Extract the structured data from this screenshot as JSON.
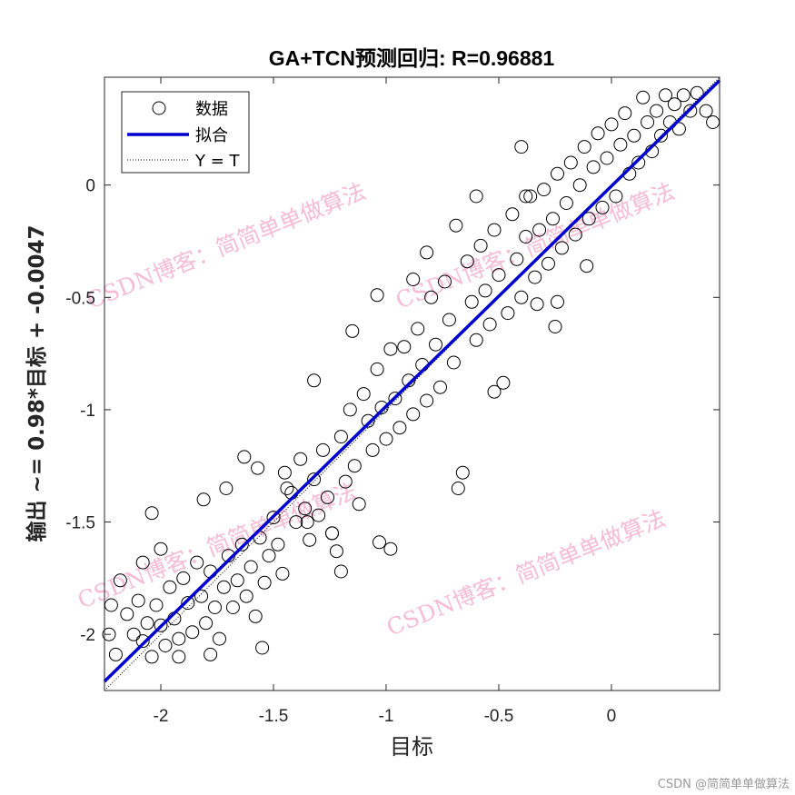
{
  "chart_data": {
    "type": "scatter",
    "title": "GA+TCN预测回归: R=0.96881",
    "xlabel": "目标",
    "ylabel": "输出 ~= 0.98*目标 + -0.0047",
    "xlim": [
      -2.25,
      0.48
    ],
    "ylim": [
      -2.25,
      0.48
    ],
    "xticks": [
      -2,
      -1.5,
      -1,
      -0.5,
      0
    ],
    "yticks": [
      -2,
      -1.5,
      -1,
      -0.5,
      0
    ],
    "tick_labels": [
      "-2",
      "-1.5",
      "-1",
      "-0.5",
      "0"
    ],
    "fit": {
      "slope": 0.98,
      "intercept": -0.0047
    },
    "marker_color": "#000000",
    "fit_color": "#0000cd",
    "legend": {
      "position": "top-left",
      "entries": [
        "数据",
        "拟合",
        "Y = T"
      ]
    },
    "series": [
      {
        "name": "数据",
        "points": [
          [
            -2.23,
            -2.0
          ],
          [
            -2.22,
            -1.87
          ],
          [
            -2.2,
            -2.09
          ],
          [
            -2.18,
            -1.76
          ],
          [
            -2.15,
            -1.91
          ],
          [
            -2.12,
            -2.0
          ],
          [
            -2.1,
            -1.85
          ],
          [
            -2.08,
            -2.03
          ],
          [
            -2.06,
            -1.95
          ],
          [
            -2.04,
            -2.1
          ],
          [
            -2.02,
            -1.87
          ],
          [
            -2.0,
            -1.96
          ],
          [
            -2.04,
            -1.46
          ],
          [
            -2.0,
            -1.62
          ],
          [
            -1.98,
            -2.05
          ],
          [
            -1.96,
            -1.79
          ],
          [
            -1.94,
            -1.93
          ],
          [
            -1.92,
            -2.02
          ],
          [
            -1.9,
            -1.75
          ],
          [
            -1.88,
            -1.86
          ],
          [
            -1.86,
            -1.99
          ],
          [
            -1.84,
            -1.68
          ],
          [
            -1.82,
            -1.83
          ],
          [
            -1.8,
            -1.95
          ],
          [
            -1.78,
            -1.72
          ],
          [
            -1.76,
            -1.88
          ],
          [
            -1.74,
            -2.02
          ],
          [
            -1.72,
            -1.79
          ],
          [
            -1.7,
            -1.65
          ],
          [
            -1.68,
            -1.88
          ],
          [
            -1.66,
            -1.76
          ],
          [
            -1.64,
            -1.6
          ],
          [
            -1.62,
            -1.83
          ],
          [
            -1.6,
            -1.7
          ],
          [
            -1.58,
            -1.92
          ],
          [
            -1.56,
            -1.57
          ],
          [
            -1.55,
            -2.06
          ],
          [
            -1.54,
            -1.77
          ],
          [
            -1.52,
            -1.65
          ],
          [
            -1.5,
            -1.48
          ],
          [
            -1.48,
            -1.6
          ],
          [
            -1.46,
            -1.73
          ],
          [
            -1.45,
            -1.28
          ],
          [
            -1.42,
            -1.37
          ],
          [
            -1.4,
            -1.5
          ],
          [
            -1.38,
            -1.22
          ],
          [
            -1.36,
            -1.44
          ],
          [
            -1.34,
            -1.58
          ],
          [
            -1.32,
            -1.31
          ],
          [
            -1.3,
            -1.47
          ],
          [
            -1.28,
            -1.18
          ],
          [
            -1.26,
            -1.39
          ],
          [
            -1.24,
            -1.55
          ],
          [
            -1.22,
            -1.63
          ],
          [
            -1.2,
            -1.12
          ],
          [
            -1.18,
            -1.32
          ],
          [
            -1.16,
            -1.0
          ],
          [
            -1.14,
            -1.25
          ],
          [
            -1.12,
            -1.42
          ],
          [
            -1.1,
            -0.93
          ],
          [
            -1.08,
            -1.05
          ],
          [
            -1.06,
            -1.18
          ],
          [
            -1.04,
            -0.82
          ],
          [
            -1.02,
            -0.99
          ],
          [
            -1.0,
            -1.13
          ],
          [
            -0.98,
            -0.73
          ],
          [
            -1.03,
            -1.59
          ],
          [
            -0.98,
            -1.62
          ],
          [
            -1.2,
            -1.72
          ],
          [
            -0.96,
            -0.95
          ],
          [
            -0.94,
            -1.08
          ],
          [
            -0.92,
            -0.72
          ],
          [
            -0.9,
            -0.87
          ],
          [
            -0.88,
            -1.02
          ],
          [
            -0.86,
            -0.64
          ],
          [
            -0.84,
            -0.8
          ],
          [
            -0.82,
            -0.96
          ],
          [
            -0.8,
            -0.5
          ],
          [
            -0.78,
            -0.71
          ],
          [
            -0.76,
            -0.9
          ],
          [
            -0.74,
            -0.43
          ],
          [
            -0.72,
            -0.6
          ],
          [
            -0.7,
            -0.79
          ],
          [
            -0.68,
            -1.35
          ],
          [
            -0.66,
            -1.28
          ],
          [
            -0.64,
            -0.34
          ],
          [
            -0.62,
            -0.52
          ],
          [
            -0.6,
            -0.69
          ],
          [
            -0.58,
            -0.27
          ],
          [
            -0.56,
            -0.47
          ],
          [
            -0.54,
            -0.62
          ],
          [
            -0.52,
            -0.2
          ],
          [
            -0.5,
            -0.4
          ],
          [
            -0.48,
            -0.88
          ],
          [
            -0.46,
            -0.57
          ],
          [
            -0.44,
            -0.13
          ],
          [
            -0.42,
            -0.33
          ],
          [
            -0.4,
            -0.5
          ],
          [
            -0.38,
            -0.23
          ],
          [
            -0.36,
            -0.05
          ],
          [
            -0.34,
            -0.41
          ],
          [
            -0.32,
            -0.2
          ],
          [
            -0.3,
            -0.02
          ],
          [
            -0.28,
            -0.35
          ],
          [
            -0.26,
            -0.15
          ],
          [
            -0.24,
            0.05
          ],
          [
            -0.22,
            -0.28
          ],
          [
            -0.2,
            -0.08
          ],
          [
            -0.18,
            0.1
          ],
          [
            -0.16,
            -0.22
          ],
          [
            -0.14,
            0.0
          ],
          [
            -0.12,
            0.17
          ],
          [
            -0.1,
            -0.15
          ],
          [
            -0.08,
            0.08
          ],
          [
            -0.06,
            0.23
          ],
          [
            -0.04,
            -0.1
          ],
          [
            -0.02,
            0.12
          ],
          [
            0.0,
            0.27
          ],
          [
            0.02,
            -0.05
          ],
          [
            0.04,
            0.18
          ],
          [
            0.06,
            0.32
          ],
          [
            0.08,
            0.05
          ],
          [
            0.1,
            0.22
          ],
          [
            0.12,
            0.1
          ],
          [
            0.14,
            0.39
          ],
          [
            0.16,
            0.28
          ],
          [
            0.18,
            0.15
          ],
          [
            0.2,
            0.33
          ],
          [
            0.22,
            0.22
          ],
          [
            0.24,
            0.4
          ],
          [
            0.26,
            0.28
          ],
          [
            0.28,
            0.36
          ],
          [
            0.3,
            0.25
          ],
          [
            0.32,
            0.4
          ],
          [
            0.35,
            0.33
          ],
          [
            0.38,
            0.41
          ],
          [
            0.42,
            0.33
          ],
          [
            0.45,
            0.28
          ],
          [
            -0.4,
            0.17
          ],
          [
            -0.38,
            -0.05
          ],
          [
            -0.6,
            -0.05
          ],
          [
            -0.33,
            -0.53
          ],
          [
            -0.25,
            -0.63
          ],
          [
            -1.15,
            -0.65
          ],
          [
            -1.04,
            -0.49
          ],
          [
            -0.88,
            -0.42
          ],
          [
            -1.32,
            -0.87
          ],
          [
            -1.24,
            -1.55
          ],
          [
            -1.35,
            -1.5
          ],
          [
            -1.44,
            -1.35
          ],
          [
            -1.63,
            -1.21
          ],
          [
            -1.57,
            -1.26
          ],
          [
            -1.81,
            -1.4
          ],
          [
            -1.71,
            -1.35
          ],
          [
            -2.08,
            -1.68
          ],
          [
            -1.92,
            -2.1
          ],
          [
            -1.78,
            -2.09
          ],
          [
            -0.69,
            -0.18
          ],
          [
            -0.52,
            -0.92
          ],
          [
            -0.11,
            -0.36
          ],
          [
            -0.24,
            -0.52
          ],
          [
            -0.82,
            -0.3
          ]
        ]
      },
      {
        "name": "拟合"
      },
      {
        "name": "Y = T"
      }
    ]
  },
  "watermark": {
    "text": "CSDN博客：简简单单做算法",
    "color": "#f4a6c6"
  },
  "credit": "CSDN @简简单单做算法"
}
